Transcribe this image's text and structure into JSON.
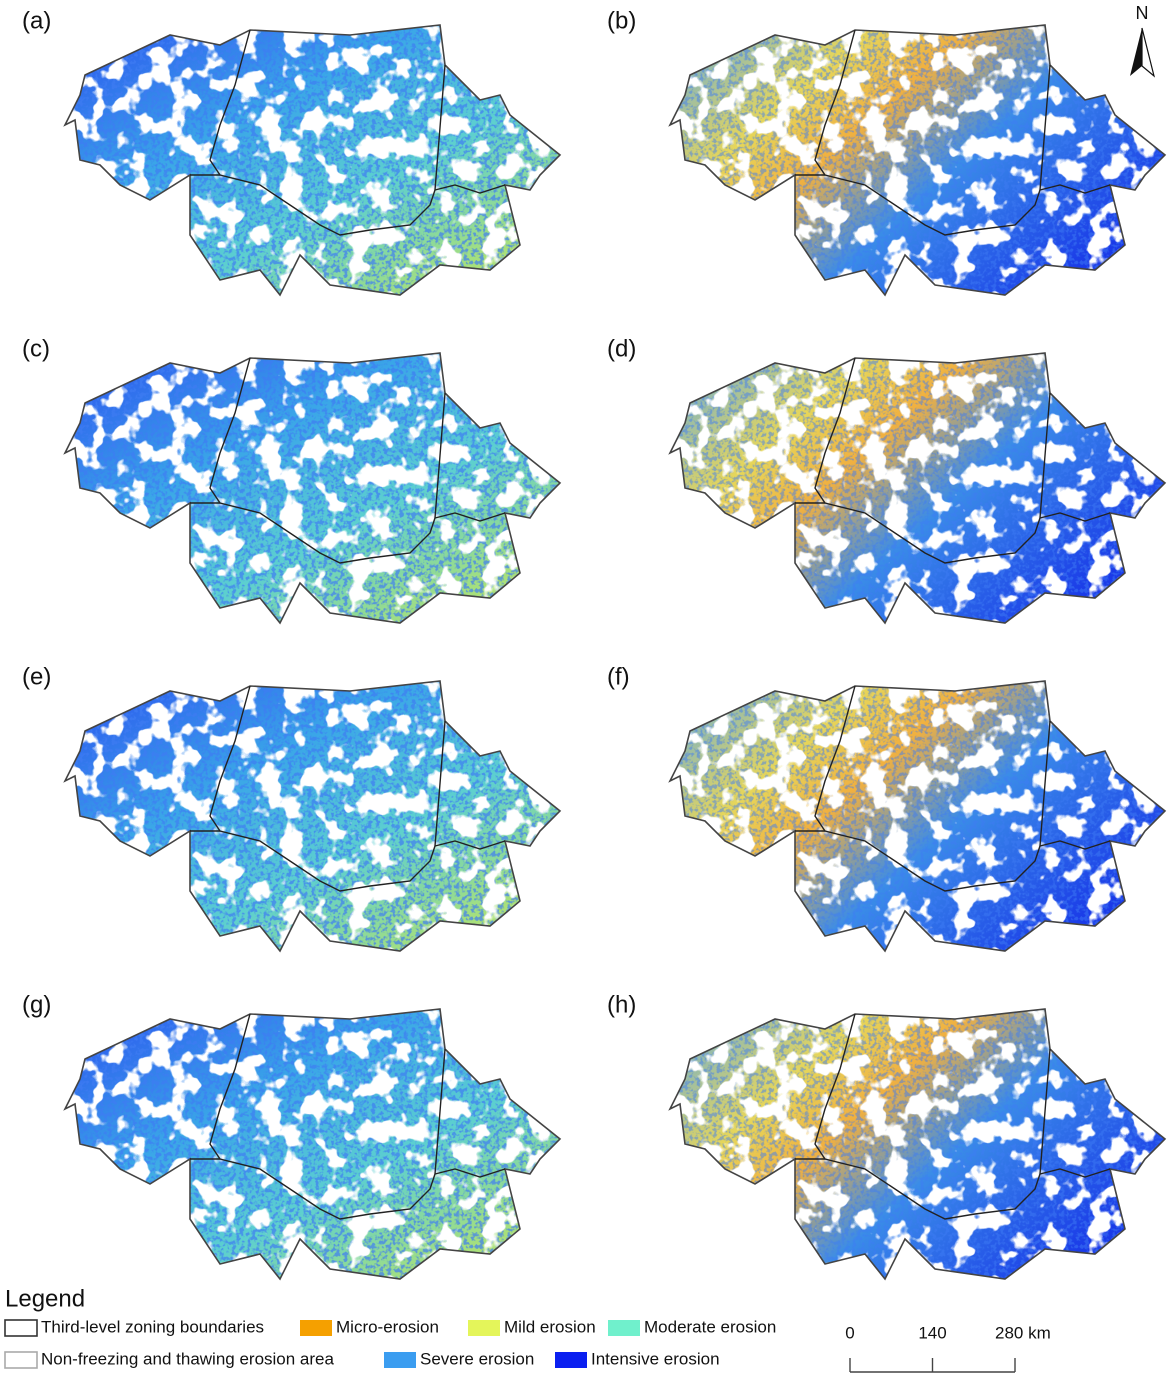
{
  "panels": [
    "(a)",
    "(b)",
    "(c)",
    "(d)",
    "(e)",
    "(f)",
    "(g)",
    "(h)"
  ],
  "north": "N",
  "legend": {
    "title": "Legend",
    "items": [
      {
        "label": "Third-level zoning boundaries",
        "color": "#ffffff",
        "outline": "#333333"
      },
      {
        "label": "Micro-erosion",
        "color": "#f5a000"
      },
      {
        "label": "Mild erosion",
        "color": "#e4f55a"
      },
      {
        "label": "Moderate erosion",
        "color": "#70f0cc"
      },
      {
        "label": "Non-freezing and thawing erosion area",
        "color": "#ffffff",
        "outline": "#aaaaaa"
      },
      {
        "label": "Severe erosion",
        "color": "#3b9df0"
      },
      {
        "label": "Intensive erosion",
        "color": "#0a1ff0"
      }
    ]
  },
  "scale_bar": {
    "ticks": [
      0,
      140,
      {
        "value": 280,
        "label": "280 km"
      }
    ]
  }
}
